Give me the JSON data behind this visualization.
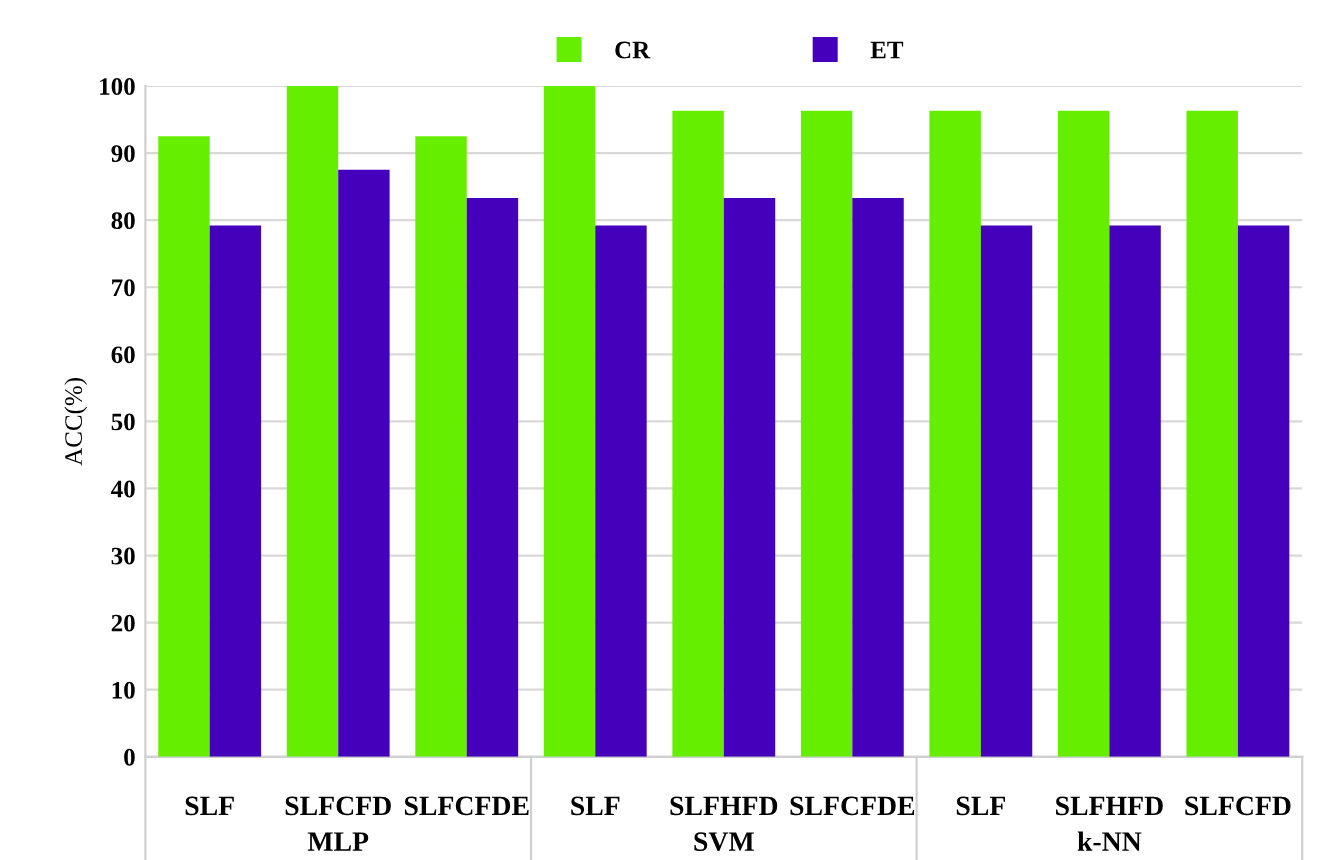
{
  "chart_data": {
    "type": "bar",
    "ylabel": "ACC(%)",
    "categories": [
      "SLF",
      "SLFCFD",
      "SLFCFDE",
      "SLF",
      "SLFHFD",
      "SLFCFDE",
      "SLF",
      "SLFHFD",
      "SLFCFD"
    ],
    "series": [
      {
        "name": "CR",
        "color": "#66ee00",
        "values": [
          92.5,
          100,
          92.5,
          100,
          96.3,
          96.3,
          96.3,
          96.3,
          96.3
        ]
      },
      {
        "name": "ET",
        "color": "#4400bb",
        "values": [
          79.2,
          87.5,
          83.3,
          79.2,
          83.3,
          83.3,
          79.2,
          79.2,
          79.2
        ]
      }
    ],
    "annotations": [
      "MLP",
      "SVM",
      "k-NN"
    ],
    "ylim": [
      0,
      100
    ],
    "yticks": [
      0,
      10,
      20,
      30,
      40,
      50,
      60,
      70,
      80,
      90,
      100
    ],
    "grid": "y",
    "legend": "top"
  }
}
